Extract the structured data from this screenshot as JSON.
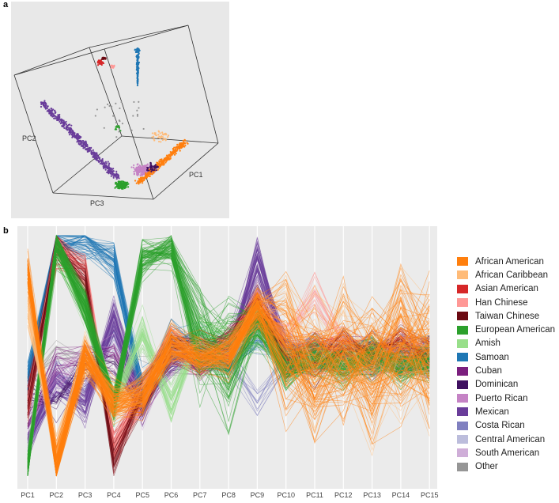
{
  "panels": {
    "a": "a",
    "b": "b"
  },
  "chart_data": [
    {
      "type": "scatter",
      "subtype": "3d-scatter",
      "axis_labels": {
        "x": "PC1",
        "y": "PC2",
        "z": "PC3"
      },
      "background": "#e8e8e8"
    },
    {
      "type": "line",
      "subtype": "parallel-coordinates",
      "categories": [
        "PC1",
        "PC2",
        "PC3",
        "PC4",
        "PC5",
        "PC6",
        "PC7",
        "PC8",
        "PC9",
        "PC10",
        "PC11",
        "PC12",
        "PC13",
        "PC14",
        "PC15"
      ],
      "ylim": [
        0,
        1
      ],
      "grid": true,
      "legend_position": "right",
      "series": [
        {
          "name": "African American",
          "color": "#ff7f0e",
          "profile": [
            0.85,
            0.05,
            0.5,
            0.3,
            0.33,
            0.55,
            0.5,
            0.5,
            0.7,
            0.55,
            0.45,
            0.5,
            0.45,
            0.55,
            0.5
          ]
        },
        {
          "name": "African Caribbean",
          "color": "#ffbb78",
          "profile": [
            0.7,
            0.1,
            0.5,
            0.3,
            0.35,
            0.55,
            0.5,
            0.5,
            0.7,
            0.6,
            0.5,
            0.55,
            0.45,
            0.55,
            0.5
          ]
        },
        {
          "name": "Asian American",
          "color": "#d62728",
          "profile": [
            0.3,
            0.95,
            0.85,
            0.1,
            0.35,
            0.55,
            0.5,
            0.55,
            0.72,
            0.5,
            0.55,
            0.55,
            0.5,
            0.55,
            0.5
          ]
        },
        {
          "name": "Han Chinese",
          "color": "#ff9896",
          "profile": [
            0.3,
            0.95,
            0.85,
            0.12,
            0.35,
            0.55,
            0.5,
            0.55,
            0.72,
            0.6,
            0.75,
            0.55,
            0.5,
            0.55,
            0.5
          ]
        },
        {
          "name": "Taiwan Chinese",
          "color": "#6b0a12",
          "profile": [
            0.3,
            0.95,
            0.82,
            0.08,
            0.35,
            0.55,
            0.5,
            0.55,
            0.72,
            0.5,
            0.45,
            0.55,
            0.5,
            0.55,
            0.5
          ]
        },
        {
          "name": "European American",
          "color": "#2ca02c",
          "profile": [
            0.03,
            0.97,
            0.7,
            0.3,
            0.9,
            0.95,
            0.55,
            0.5,
            0.65,
            0.45,
            0.5,
            0.45,
            0.5,
            0.45,
            0.48
          ]
        },
        {
          "name": "Amish",
          "color": "#98df8a",
          "profile": [
            0.05,
            0.95,
            0.7,
            0.3,
            0.6,
            0.3,
            0.6,
            0.55,
            0.6,
            0.5,
            0.5,
            0.5,
            0.5,
            0.5,
            0.5
          ]
        },
        {
          "name": "Samoan",
          "color": "#1f77b4",
          "profile": [
            0.4,
            0.98,
            0.98,
            0.9,
            0.35,
            0.55,
            0.55,
            0.5,
            0.6,
            0.5,
            0.5,
            0.5,
            0.5,
            0.5,
            0.5
          ]
        },
        {
          "name": "Cuban",
          "color": "#7b1f7e",
          "profile": [
            0.2,
            0.5,
            0.5,
            0.5,
            0.3,
            0.5,
            0.5,
            0.5,
            0.75,
            0.5,
            0.5,
            0.5,
            0.5,
            0.5,
            0.5
          ]
        },
        {
          "name": "Dominican",
          "color": "#3f1060",
          "profile": [
            0.35,
            0.3,
            0.45,
            0.45,
            0.3,
            0.5,
            0.5,
            0.5,
            0.7,
            0.5,
            0.5,
            0.5,
            0.5,
            0.5,
            0.5
          ]
        },
        {
          "name": "Puerto Rican",
          "color": "#c583c5",
          "profile": [
            0.25,
            0.4,
            0.5,
            0.5,
            0.3,
            0.5,
            0.5,
            0.5,
            0.7,
            0.5,
            0.5,
            0.5,
            0.5,
            0.5,
            0.5
          ]
        },
        {
          "name": "Mexican",
          "color": "#6a3d9a",
          "profile": [
            0.15,
            0.4,
            0.3,
            0.65,
            0.3,
            0.5,
            0.5,
            0.5,
            0.9,
            0.5,
            0.5,
            0.5,
            0.5,
            0.5,
            0.5
          ]
        },
        {
          "name": "Costa Rican",
          "color": "#8080c0",
          "profile": [
            0.15,
            0.4,
            0.35,
            0.6,
            0.3,
            0.5,
            0.5,
            0.5,
            0.3,
            0.5,
            0.5,
            0.5,
            0.5,
            0.5,
            0.5
          ]
        },
        {
          "name": "Central American",
          "color": "#bcbddc",
          "profile": [
            0.15,
            0.4,
            0.35,
            0.6,
            0.3,
            0.5,
            0.5,
            0.5,
            0.6,
            0.5,
            0.5,
            0.5,
            0.5,
            0.5,
            0.5
          ]
        },
        {
          "name": "South American",
          "color": "#cfaed8",
          "profile": [
            0.15,
            0.45,
            0.35,
            0.55,
            0.3,
            0.5,
            0.5,
            0.5,
            0.6,
            0.5,
            0.5,
            0.5,
            0.5,
            0.5,
            0.5
          ]
        },
        {
          "name": "Other",
          "color": "#969696",
          "profile": [
            0.4,
            0.5,
            0.5,
            0.5,
            0.4,
            0.5,
            0.5,
            0.5,
            0.6,
            0.5,
            0.5,
            0.5,
            0.5,
            0.5,
            0.5
          ]
        }
      ]
    }
  ]
}
